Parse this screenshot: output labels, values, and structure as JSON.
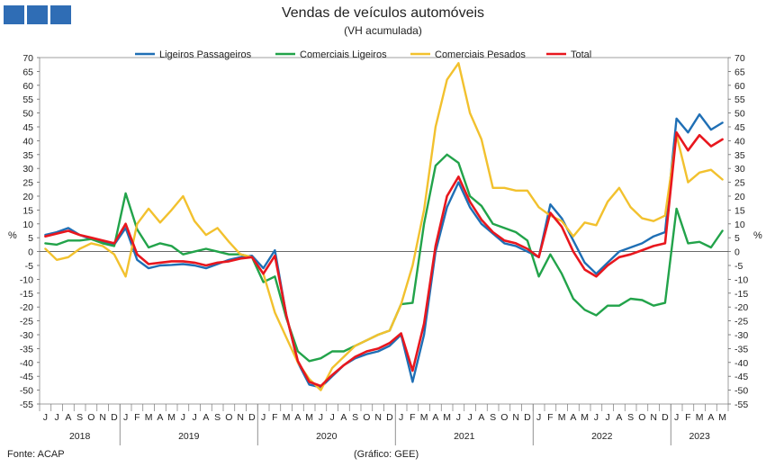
{
  "header": {
    "title": "Vendas de veículos automóveis",
    "subtitle": "(VH acumulada)",
    "logo_color": "#2f6db5"
  },
  "footer": {
    "source": "Fonte: ACAP",
    "credit": "(Gráfico: GEE)"
  },
  "chart_data": {
    "type": "line",
    "title": "Vendas de veículos automóveis",
    "subtitle": "(VH acumulada)",
    "ylabel_left": "%",
    "ylabel_right": "%",
    "ylim": [
      -55,
      70
    ],
    "ytick_step": 5,
    "grid": false,
    "legend_position": "top",
    "x_month_labels": [
      "J",
      "J",
      "A",
      "S",
      "O",
      "N",
      "D",
      "J",
      "F",
      "M",
      "A",
      "M",
      "J",
      "J",
      "A",
      "S",
      "O",
      "N",
      "D",
      "J",
      "F",
      "M",
      "A",
      "M",
      "J",
      "J",
      "A",
      "S",
      "O",
      "N",
      "D",
      "J",
      "F",
      "M",
      "A",
      "M",
      "J",
      "J",
      "A",
      "S",
      "O",
      "N",
      "D",
      "J",
      "F",
      "M",
      "A",
      "M",
      "J",
      "J",
      "A",
      "S",
      "O",
      "N",
      "D",
      "J",
      "F",
      "M",
      "A",
      "M"
    ],
    "year_groups": [
      {
        "label": "2018",
        "months": 7
      },
      {
        "label": "2019",
        "months": 12
      },
      {
        "label": "2020",
        "months": 12
      },
      {
        "label": "2021",
        "months": 12
      },
      {
        "label": "2022",
        "months": 12
      },
      {
        "label": "2023",
        "months": 5
      }
    ],
    "series": [
      {
        "name": "Ligeiros Passageiros",
        "color": "#1f6fb5",
        "values": [
          6,
          7,
          8.5,
          6,
          4.5,
          3.5,
          2.5,
          8.5,
          -3,
          -6,
          -5,
          -4.8,
          -4.5,
          -5,
          -6,
          -4.5,
          -3,
          -2,
          -1.5,
          -6,
          0.5,
          -23,
          -40,
          -48,
          -49,
          -45,
          -41,
          -38.5,
          -37,
          -36,
          -34,
          -30,
          -47,
          -30,
          0,
          16,
          25,
          16,
          10,
          6.5,
          3,
          2,
          0,
          -2,
          17,
          12,
          4,
          -4,
          -8,
          -4,
          0,
          1.5,
          3,
          5.5,
          7,
          48,
          43,
          49.5,
          44,
          46.5
        ]
      },
      {
        "name": "Comerciais Ligeiros",
        "color": "#22a34a",
        "values": [
          3,
          2.5,
          4,
          4,
          4.5,
          3,
          2,
          21,
          8,
          1.5,
          3,
          2,
          -1,
          0,
          1,
          0,
          -1,
          -1,
          -2,
          -11,
          -9,
          -24,
          -36,
          -39.5,
          -38.5,
          -36,
          -36,
          -34,
          -32,
          -30,
          -28.5,
          -19,
          -18.5,
          10,
          31,
          35,
          32,
          20,
          16.5,
          10,
          8.5,
          7,
          4,
          -9,
          -1,
          -8,
          -17,
          -21,
          -23,
          -19.5,
          -19.5,
          -17,
          -17.5,
          -19.5,
          -18.5,
          15.5,
          3,
          3.5,
          1.5,
          7.5
        ]
      },
      {
        "name": "Comerciais Pesados",
        "color": "#f2c12e",
        "values": [
          1,
          -3,
          -2,
          1,
          3,
          2,
          -1,
          -9,
          10,
          15.5,
          10.5,
          15,
          20,
          11,
          6,
          8.5,
          3.5,
          -1,
          -2,
          -8,
          -22,
          -31,
          -40,
          -46,
          -50,
          -42,
          -38,
          -34,
          -32,
          -30,
          -28.5,
          -19,
          -5,
          15,
          45,
          62,
          68,
          50,
          40.5,
          23,
          23,
          22,
          22,
          16,
          13,
          11,
          5.5,
          10.5,
          9.5,
          18,
          23,
          16,
          12,
          11,
          13,
          42,
          25,
          28.5,
          29.5,
          26
        ]
      },
      {
        "name": "Total",
        "color": "#e8171e",
        "values": [
          5.5,
          6.5,
          7.5,
          6,
          5,
          4,
          3,
          10,
          -1,
          -4.5,
          -4,
          -3.5,
          -3.5,
          -4,
          -5,
          -4,
          -3.5,
          -2.5,
          -2,
          -8,
          -1.5,
          -23,
          -39.5,
          -47,
          -48.5,
          -44.5,
          -41,
          -38,
          -36,
          -35,
          -33,
          -29.5,
          -43,
          -26,
          2,
          20,
          27,
          18,
          11.5,
          7,
          4,
          3,
          1,
          -2,
          14,
          9,
          0,
          -6.5,
          -9,
          -5,
          -2,
          -1,
          0.5,
          2,
          3,
          43,
          36.5,
          42,
          38,
          40.5
        ]
      }
    ]
  }
}
